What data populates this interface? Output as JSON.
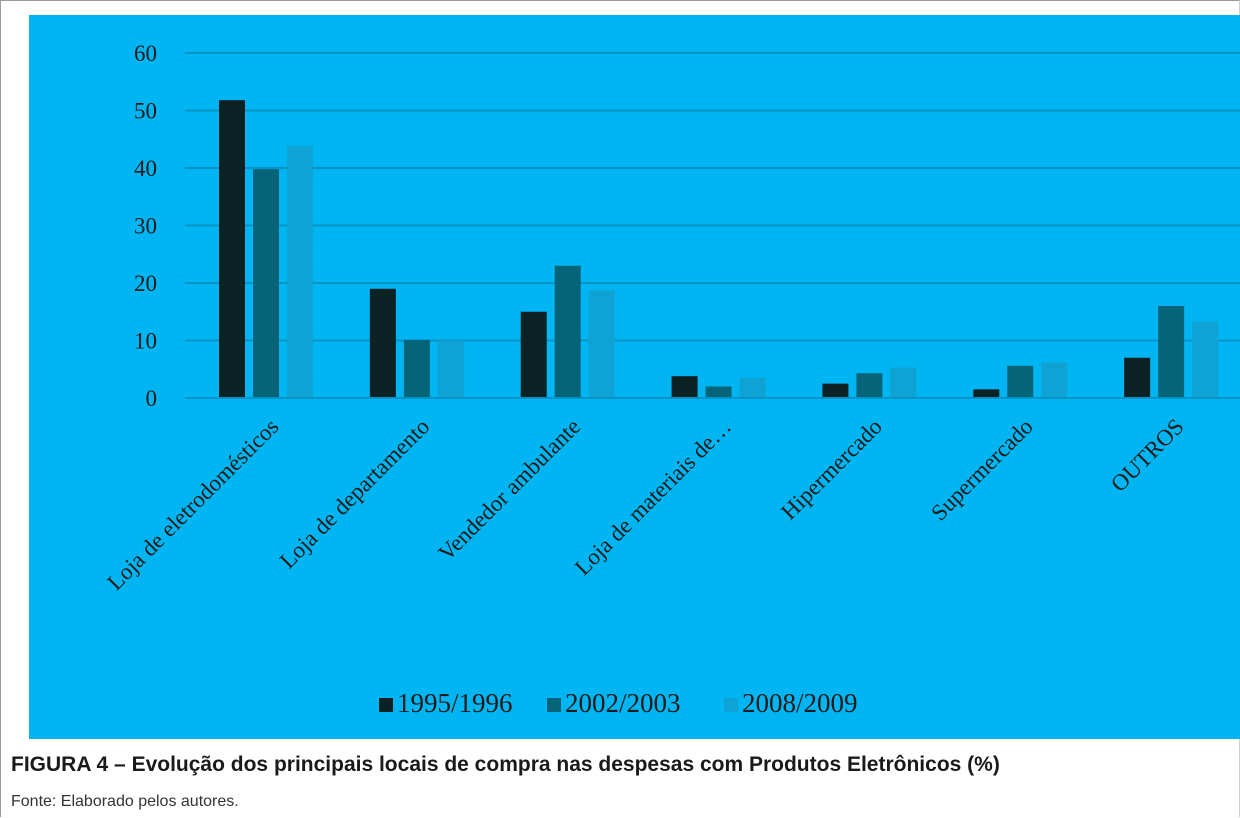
{
  "chart_data": {
    "type": "bar",
    "categories": [
      "Loja de eletrodomésticos",
      "Loja de departamento",
      "Vendedor ambulante",
      "Loja de materiais de…",
      "Hipermercado",
      "Supermercado",
      "OUTROS"
    ],
    "series": [
      {
        "name": "1995/1996",
        "color": "#0b2225",
        "values": [
          51.8,
          19.0,
          15.0,
          3.8,
          2.5,
          1.5,
          7.0
        ]
      },
      {
        "name": "2002/2003",
        "color": "#056478",
        "values": [
          39.8,
          10.1,
          23.0,
          2.0,
          4.3,
          5.6,
          16.0
        ]
      },
      {
        "name": "2008/2009",
        "color": "#0ea3d4",
        "values": [
          43.8,
          10.0,
          18.7,
          3.5,
          5.3,
          6.2,
          13.3
        ]
      }
    ],
    "y_ticks": [
      "0",
      "10",
      "20",
      "30",
      "40",
      "50",
      "60"
    ],
    "ylim": [
      0,
      60
    ],
    "grid": true,
    "legend_position": "bottom",
    "background_color": "#00b5f1",
    "gridline_color": "#0793c6"
  },
  "caption": "FIGURA 4 – Evolução dos principais locais de compra nas despesas com Produtos Eletrônicos (%)",
  "source": "Fonte: Elaborado pelos autores."
}
